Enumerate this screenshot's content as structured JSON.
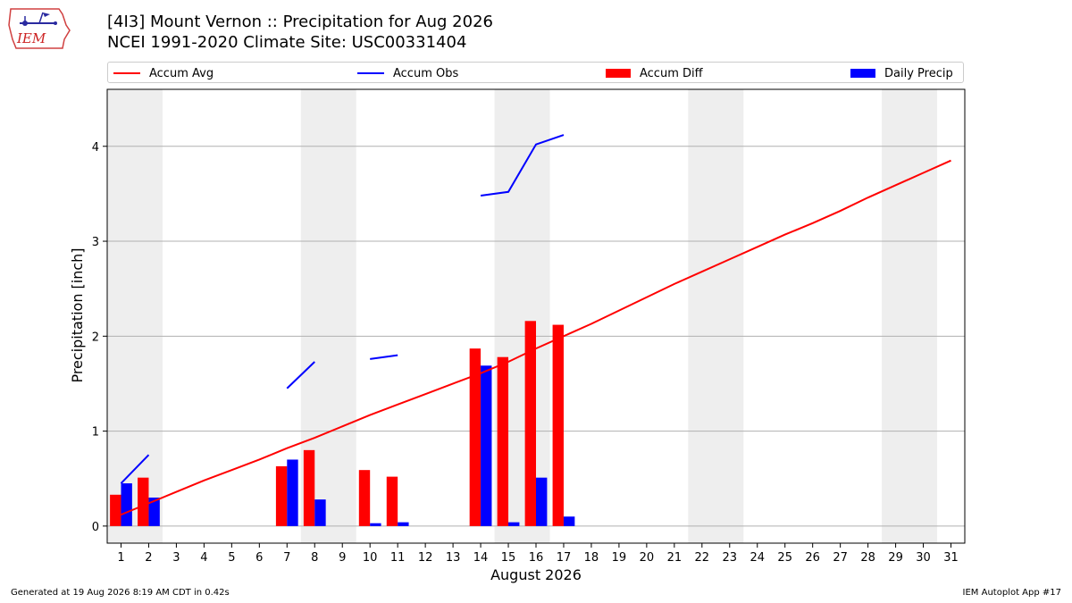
{
  "logo": {
    "text": "IEM"
  },
  "title_line1": "[4I3] Mount Vernon :: Precipitation for Aug 2026",
  "title_line2": "NCEI 1991-2020 Climate Site: USC00331404",
  "footer": {
    "left": "Generated at 19 Aug 2026 8:19 AM CDT in 0.42s",
    "right": "IEM Autoplot App #17"
  },
  "colors": {
    "avg": "#ff0000",
    "obs": "#0000ff",
    "diff": "#ff0000",
    "daily": "#0000ff",
    "weekend_shade": "#eeeeee",
    "grid": "#b0b0b0"
  },
  "chart_data": {
    "type": "bar",
    "xlabel": "August 2026",
    "ylabel": "Precipitation [inch]",
    "xlim": [
      0.5,
      31.5
    ],
    "ylim": [
      -0.18,
      4.6
    ],
    "yticks": [
      0,
      1,
      2,
      3,
      4
    ],
    "days": [
      1,
      2,
      3,
      4,
      5,
      6,
      7,
      8,
      9,
      10,
      11,
      12,
      13,
      14,
      15,
      16,
      17,
      18,
      19,
      20,
      21,
      22,
      23,
      24,
      25,
      26,
      27,
      28,
      29,
      30,
      31
    ],
    "grid": "horizontal",
    "legend": "top",
    "legend_labels": [
      "Accum Avg",
      "Accum Obs",
      "Accum Diff",
      "Daily Precip"
    ],
    "weekend_spans": [
      [
        0.5,
        2.5
      ],
      [
        7.5,
        9.5
      ],
      [
        14.5,
        16.5
      ],
      [
        21.5,
        23.5
      ],
      [
        28.5,
        30.5
      ]
    ],
    "accum_avg": {
      "name": "Accum Avg",
      "values": [
        0.12,
        0.24,
        0.36,
        0.48,
        0.59,
        0.7,
        0.82,
        0.93,
        1.05,
        1.17,
        1.28,
        1.39,
        1.5,
        1.61,
        1.73,
        1.87,
        2.0,
        2.13,
        2.27,
        2.41,
        2.55,
        2.68,
        2.81,
        2.94,
        3.07,
        3.19,
        3.32,
        3.46,
        3.59,
        3.72,
        3.85
      ]
    },
    "accum_obs": {
      "name": "Accum Obs",
      "segments": [
        [
          [
            1,
            0.45
          ],
          [
            2,
            0.75
          ]
        ],
        [
          [
            7,
            1.45
          ],
          [
            8,
            1.73
          ]
        ],
        [
          [
            10,
            1.76
          ],
          [
            11,
            1.8
          ]
        ],
        [
          [
            14,
            3.48
          ],
          [
            15,
            3.52
          ],
          [
            16,
            4.02
          ],
          [
            17,
            4.12
          ]
        ]
      ]
    },
    "accum_diff": {
      "name": "Accum Diff",
      "days": [
        1,
        2,
        7,
        8,
        10,
        11,
        14,
        15,
        16,
        17
      ],
      "values": [
        0.33,
        0.51,
        0.63,
        0.8,
        0.59,
        0.52,
        1.87,
        1.78,
        2.16,
        2.12
      ]
    },
    "daily_precip": {
      "name": "Daily Precip",
      "days": [
        1,
        2,
        7,
        8,
        10,
        11,
        14,
        15,
        16,
        17
      ],
      "values": [
        0.45,
        0.3,
        0.7,
        0.28,
        0.03,
        0.04,
        1.69,
        0.04,
        0.51,
        0.1
      ]
    }
  }
}
